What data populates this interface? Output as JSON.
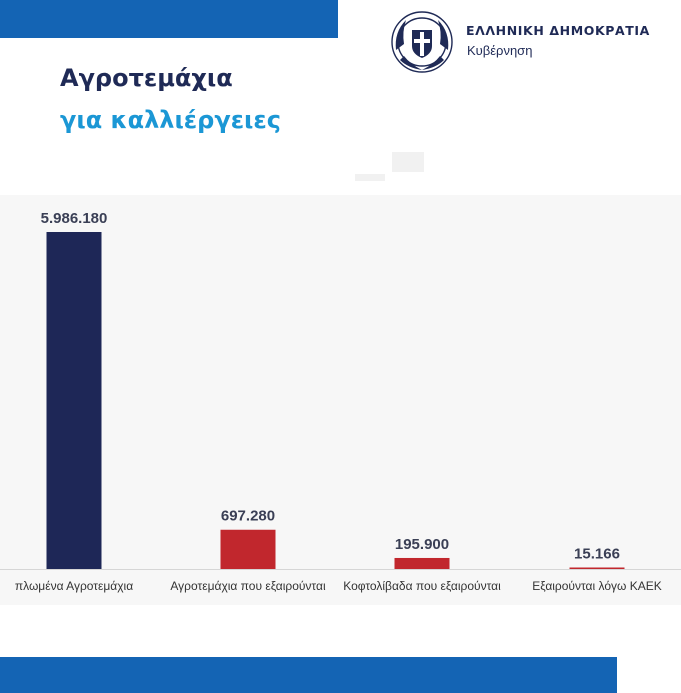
{
  "header": {
    "government_name": "ΕΛΛΗΝΙΚΗ ΔΗΜΟΚΡΑΤΙΑ",
    "government_subtitle": "Κυβέρνηση",
    "title_line1": "Αγροτεμάχια",
    "title_line2": "για καλλιέργειες"
  },
  "icons": {
    "seal": "greek-coat-of-arms-icon"
  },
  "colors": {
    "brand_blue": "#1464b4",
    "navy": "#1f2a56",
    "accent_blue": "#1b97d5",
    "dark_bar": "#1e2757",
    "red_bar": "#c1272d",
    "panel_bg": "#f7f7f7"
  },
  "chart_data": {
    "type": "bar",
    "categories": [
      "πλωμένα Αγροτεμάχια",
      "Αγροτεμάχια που εξαιρούνται",
      "Κοφτολίβαδα που εξαιρούνται",
      "Εξαιρούνται λόγω ΚΑΕΚ"
    ],
    "values": [
      5986180,
      697280,
      195900,
      15166
    ],
    "value_labels": [
      "5.986.180",
      "697.280",
      "195.900",
      "15.166"
    ],
    "bar_colors": [
      "#1e2757",
      "#c1272d",
      "#c1272d",
      "#c1272d"
    ],
    "title": "",
    "xlabel": "",
    "ylabel": "",
    "ylim": [
      0,
      5986180
    ],
    "grid": false,
    "legend": "none"
  }
}
